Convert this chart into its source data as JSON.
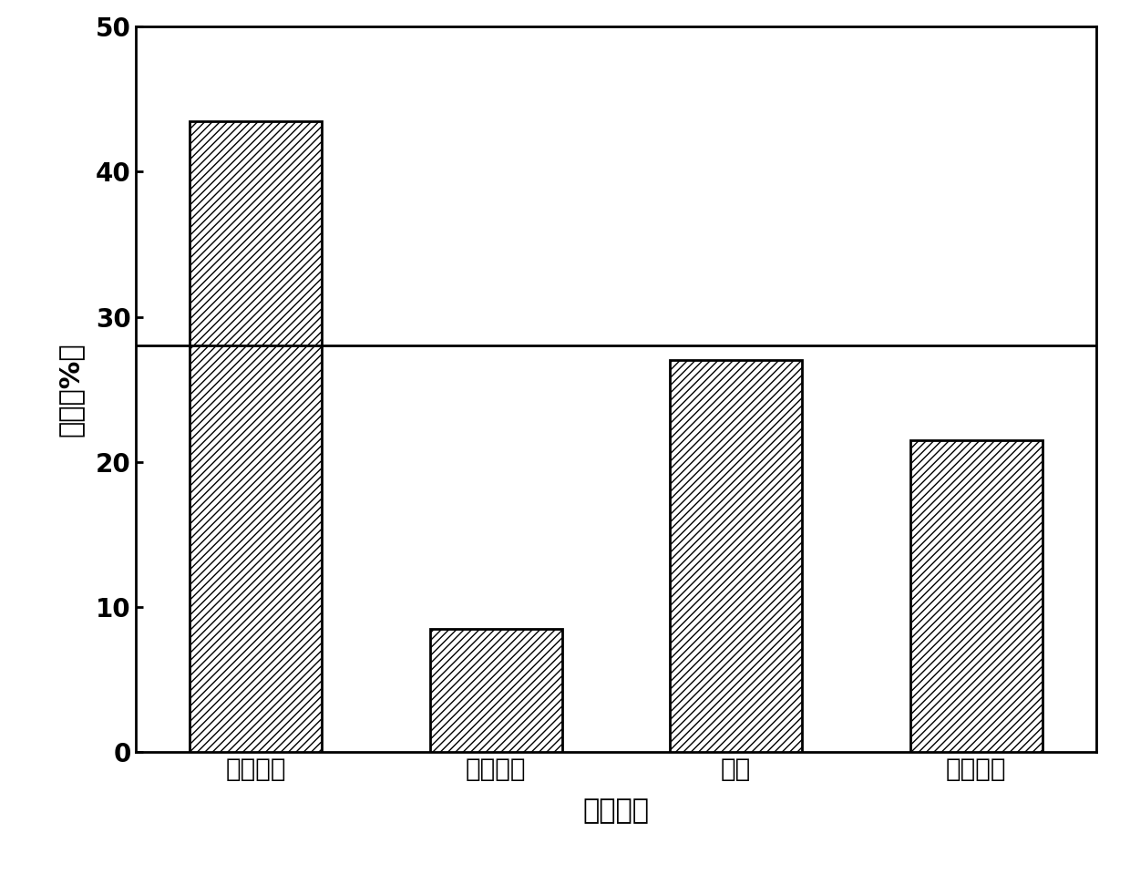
{
  "categories": [
    "芽孢杆菌",
    "脱硫弧菌",
    "弧菌",
    "假单胞菌"
  ],
  "values": [
    43.5,
    8.5,
    27.0,
    21.5
  ],
  "hline_y": 28.0,
  "ylabel": "丰度（%）",
  "xlabel": "菌剂组成",
  "ylim": [
    0,
    50
  ],
  "yticks": [
    0,
    10,
    20,
    30,
    40,
    50
  ],
  "bar_color": "white",
  "bar_edgecolor": "black",
  "hatch": "////",
  "background_color": "white",
  "label_fontsize": 22,
  "tick_fontsize": 20,
  "bar_linewidth": 2.0,
  "hline_color": "black",
  "hline_linewidth": 2.0,
  "spine_linewidth": 2.0
}
